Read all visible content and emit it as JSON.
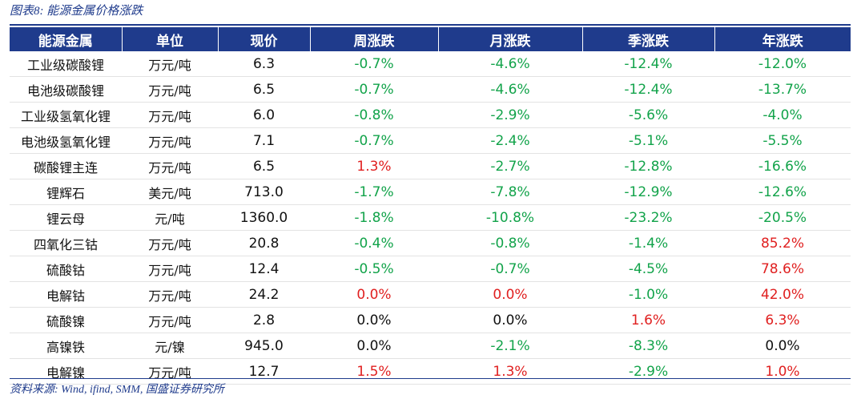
{
  "caption": "图表8:  能源金属价格涨跌",
  "source": "资料来源: Wind, ifind, SMM, 国盛证券研究所",
  "columns": [
    "能源金属",
    "单位",
    "现价",
    "周涨跌",
    "月涨跌",
    "季涨跌",
    "年涨跌"
  ],
  "rows": [
    {
      "name": "工业级碳酸锂",
      "unit": "万元/吨",
      "price": "6.3",
      "cells": [
        {
          "v": "-0.7%",
          "c": "green"
        },
        {
          "v": "-4.6%",
          "c": "green"
        },
        {
          "v": "-12.4%",
          "c": "green"
        },
        {
          "v": "-12.0%",
          "c": "green"
        }
      ]
    },
    {
      "name": "电池级碳酸锂",
      "unit": "万元/吨",
      "price": "6.5",
      "cells": [
        {
          "v": "-0.7%",
          "c": "green"
        },
        {
          "v": "-4.6%",
          "c": "green"
        },
        {
          "v": "-12.4%",
          "c": "green"
        },
        {
          "v": "-13.7%",
          "c": "green"
        }
      ]
    },
    {
      "name": "工业级氢氧化锂",
      "unit": "万元/吨",
      "price": "6.0",
      "cells": [
        {
          "v": "-0.8%",
          "c": "green"
        },
        {
          "v": "-2.9%",
          "c": "green"
        },
        {
          "v": "-5.6%",
          "c": "green"
        },
        {
          "v": "-4.0%",
          "c": "green"
        }
      ]
    },
    {
      "name": "电池级氢氧化锂",
      "unit": "万元/吨",
      "price": "7.1",
      "cells": [
        {
          "v": "-0.7%",
          "c": "green"
        },
        {
          "v": "-2.4%",
          "c": "green"
        },
        {
          "v": "-5.1%",
          "c": "green"
        },
        {
          "v": "-5.5%",
          "c": "green"
        }
      ]
    },
    {
      "name": "碳酸锂主连",
      "unit": "万元/吨",
      "price": "6.5",
      "cells": [
        {
          "v": "1.3%",
          "c": "red"
        },
        {
          "v": "-2.7%",
          "c": "green"
        },
        {
          "v": "-12.8%",
          "c": "green"
        },
        {
          "v": "-16.6%",
          "c": "green"
        }
      ]
    },
    {
      "name": "锂辉石",
      "unit": "美元/吨",
      "price": "713.0",
      "cells": [
        {
          "v": "-1.7%",
          "c": "green"
        },
        {
          "v": "-7.8%",
          "c": "green"
        },
        {
          "v": "-12.9%",
          "c": "green"
        },
        {
          "v": "-12.6%",
          "c": "green"
        }
      ]
    },
    {
      "name": "锂云母",
      "unit": "元/吨",
      "price": "1360.0",
      "cells": [
        {
          "v": "-1.8%",
          "c": "green"
        },
        {
          "v": "-10.8%",
          "c": "green"
        },
        {
          "v": "-23.2%",
          "c": "green"
        },
        {
          "v": "-20.5%",
          "c": "green"
        }
      ]
    },
    {
      "name": "四氧化三钴",
      "unit": "万元/吨",
      "price": "20.8",
      "cells": [
        {
          "v": "-0.4%",
          "c": "green"
        },
        {
          "v": "-0.8%",
          "c": "green"
        },
        {
          "v": "-1.4%",
          "c": "green"
        },
        {
          "v": "85.2%",
          "c": "red"
        }
      ]
    },
    {
      "name": "硫酸钴",
      "unit": "万元/吨",
      "price": "12.4",
      "cells": [
        {
          "v": "-0.5%",
          "c": "green"
        },
        {
          "v": "-0.7%",
          "c": "green"
        },
        {
          "v": "-4.5%",
          "c": "green"
        },
        {
          "v": "78.6%",
          "c": "red"
        }
      ]
    },
    {
      "name": "电解钴",
      "unit": "万元/吨",
      "price": "24.2",
      "cells": [
        {
          "v": "0.0%",
          "c": "red"
        },
        {
          "v": "0.0%",
          "c": "red"
        },
        {
          "v": "-1.0%",
          "c": "green"
        },
        {
          "v": "42.0%",
          "c": "red"
        }
      ]
    },
    {
      "name": "硫酸镍",
      "unit": "万元/吨",
      "price": "2.8",
      "cells": [
        {
          "v": "0.0%",
          "c": "black"
        },
        {
          "v": "0.0%",
          "c": "black"
        },
        {
          "v": "1.6%",
          "c": "red"
        },
        {
          "v": "6.3%",
          "c": "red"
        }
      ]
    },
    {
      "name": "高镍铁",
      "unit": "元/镍",
      "price": "945.0",
      "cells": [
        {
          "v": "0.0%",
          "c": "black"
        },
        {
          "v": "-2.1%",
          "c": "green"
        },
        {
          "v": "-8.3%",
          "c": "green"
        },
        {
          "v": "0.0%",
          "c": "black"
        }
      ]
    },
    {
      "name": "电解镍",
      "unit": "万元/吨",
      "price": "12.7",
      "cells": [
        {
          "v": "1.5%",
          "c": "red"
        },
        {
          "v": "1.3%",
          "c": "red"
        },
        {
          "v": "-2.9%",
          "c": "green"
        },
        {
          "v": "1.0%",
          "c": "red"
        }
      ]
    }
  ],
  "colors": {
    "header_bg": "#1f3b8c",
    "up": "#e02020",
    "down": "#12a34a",
    "neutral": "#111111"
  }
}
